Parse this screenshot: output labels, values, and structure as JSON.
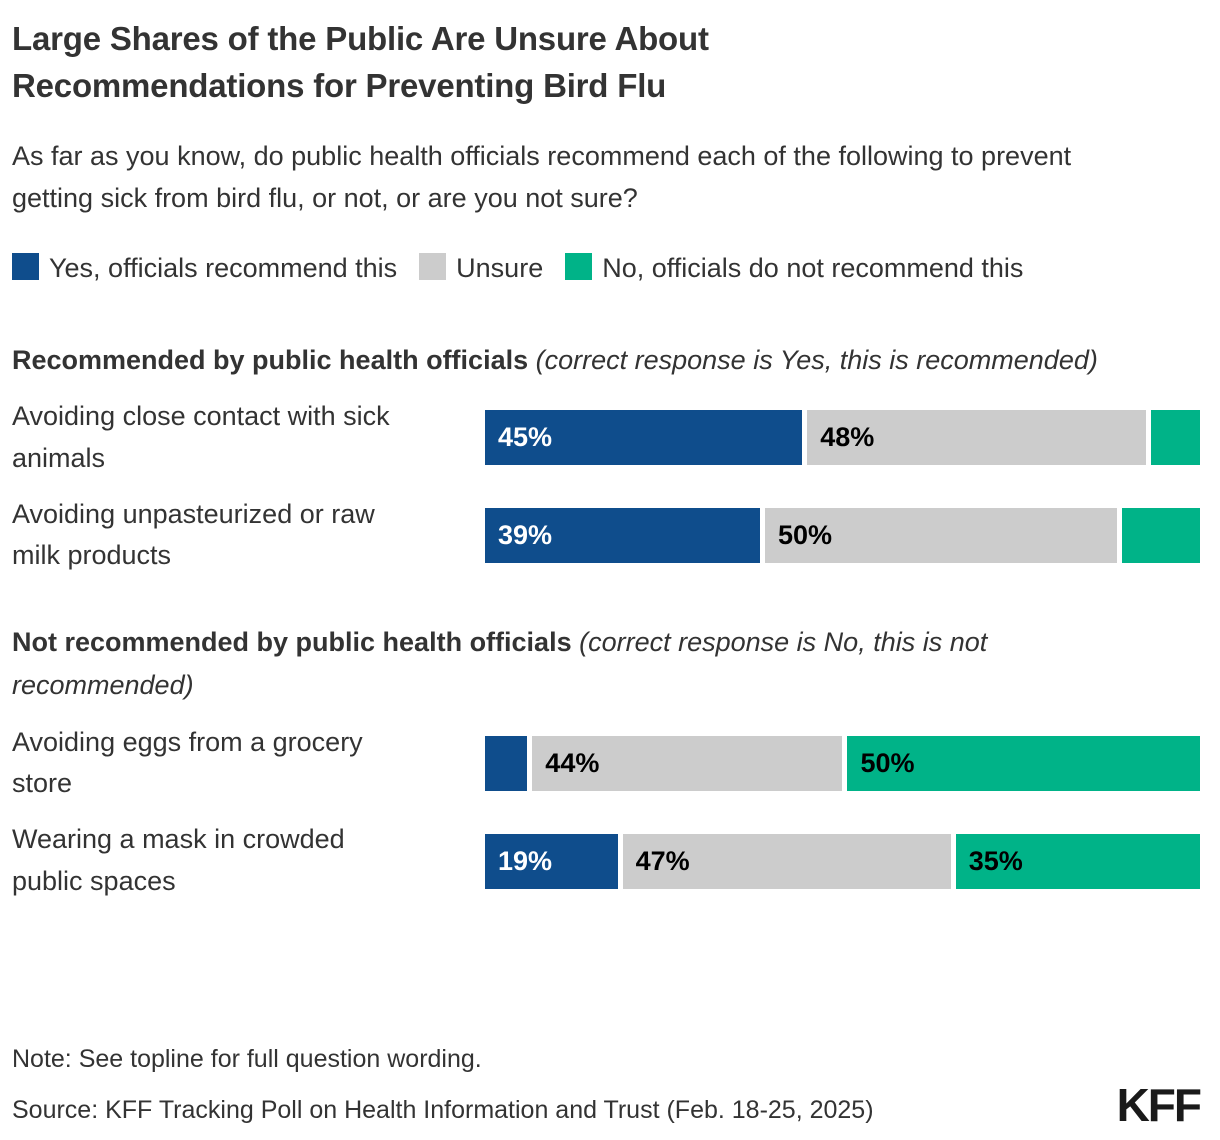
{
  "page": {
    "title": "Large Shares of the Public Are Unsure About Recommendations for Preventing Bird Flu",
    "subtitle": "As far as you know, do public health officials recommend each of the following to prevent getting sick from bird flu, or not, or are you not sure?",
    "note": "Note: See topline for full question wording.",
    "source": "Source: KFF Tracking Poll on Health Information and Trust (Feb. 18-25, 2025)",
    "logo_text": "KFF"
  },
  "colors": {
    "yes": "#0F4D8C",
    "unsure": "#CCCCCC",
    "no": "#00B388",
    "text": "#333333"
  },
  "legend": [
    {
      "key": "yes",
      "label": "Yes, officials recommend this"
    },
    {
      "key": "unsure",
      "label": "Unsure"
    },
    {
      "key": "no",
      "label": "No, officials do not recommend this"
    }
  ],
  "chart_data": {
    "type": "bar",
    "variant": "horizontal-stacked",
    "unit": "%",
    "xlim": [
      0,
      100
    ],
    "grid": false,
    "legend_position": "top",
    "series_names": [
      "Yes, officials recommend this",
      "Unsure",
      "No, officials do not recommend this"
    ],
    "sections": [
      {
        "header": "Recommended by public health officials",
        "header_note": "(correct response is Yes, this is recommended)",
        "rows": [
          {
            "category": "Avoiding close contact with sick animals",
            "values": [
              45,
              48,
              7
            ],
            "value_labels": [
              "45%",
              "48%",
              ""
            ]
          },
          {
            "category": "Avoiding unpasteurized or raw milk products",
            "values": [
              39,
              50,
              11
            ],
            "value_labels": [
              "39%",
              "50%",
              ""
            ]
          }
        ]
      },
      {
        "header": "Not recommended by public health officials",
        "header_note": "(correct response is No, this is not recommended)",
        "rows": [
          {
            "category": "Avoiding eggs from a grocery store",
            "values": [
              6,
              44,
              50
            ],
            "value_labels": [
              "",
              "44%",
              "50%"
            ]
          },
          {
            "category": "Wearing a mask in crowded public spaces",
            "values": [
              19,
              47,
              35
            ],
            "value_labels": [
              "19%",
              "47%",
              "35%"
            ]
          }
        ]
      }
    ]
  }
}
